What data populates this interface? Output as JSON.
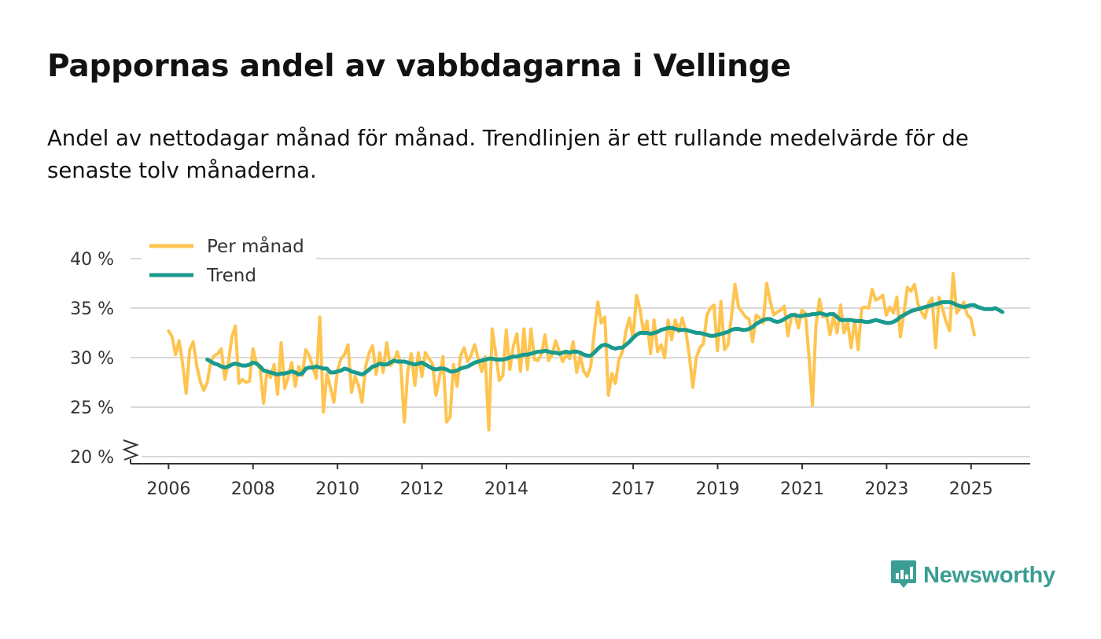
{
  "title": "Pappornas andel av vabbdagarna i Vellinge",
  "subtitle": "Andel av nettodagar månad för månad. Trendlinjen är ett rullande medelvärde för de senaste tolv månaderna.",
  "brand": {
    "name": "Newsworthy",
    "color": "#3a9e94",
    "icon": "newsworthy-logo-icon"
  },
  "colors": {
    "monthly": "#fec44f",
    "trend": "#1a9a8c",
    "grid": "#d9d9d9",
    "axis": "#333333"
  },
  "chart_data": {
    "type": "line",
    "title": "Pappornas andel av vabbdagarna i Vellinge",
    "xlabel": "",
    "ylabel": "",
    "ylim": [
      20,
      40
    ],
    "y_ticks": [
      20,
      25,
      30,
      35,
      40
    ],
    "y_tick_labels": [
      "20 %",
      "25 %",
      "30 %",
      "35 %",
      "40 %"
    ],
    "y_axis_break": true,
    "x_ticks": [
      2006,
      2008,
      2010,
      2012,
      2014,
      2017,
      2019,
      2021,
      2023,
      2025
    ],
    "x_tick_labels": [
      "2006",
      "2008",
      "2010",
      "2012",
      "2014",
      "2017",
      "2019",
      "2021",
      "2023",
      "2025"
    ],
    "xlim": [
      2005.1,
      2026.4
    ],
    "grid": true,
    "legend": {
      "position": "top-left",
      "entries": [
        "Per månad",
        "Trend"
      ]
    },
    "series": [
      {
        "name": "Per månad",
        "color": "#fec44f",
        "x_start": 2006.0,
        "step": 0.0833,
        "values": [
          32.7,
          32.1,
          30.3,
          31.7,
          29.4,
          26.4,
          30.8,
          31.6,
          29.2,
          27.6,
          26.7,
          27.5,
          29.6,
          30.2,
          30.4,
          30.9,
          27.8,
          29.5,
          32.1,
          33.2,
          27.4,
          27.8,
          27.5,
          27.6,
          30.9,
          29.4,
          28.9,
          25.4,
          28.7,
          28.0,
          29.3,
          26.3,
          31.5,
          26.9,
          28.0,
          29.5,
          27.1,
          29.1,
          28.2,
          30.8,
          30.2,
          29.0,
          27.9,
          34.1,
          24.5,
          28.4,
          27.0,
          25.5,
          28.7,
          29.9,
          30.3,
          31.3,
          26.5,
          28.1,
          27.2,
          25.5,
          29.1,
          30.5,
          31.2,
          28.3,
          30.5,
          28.5,
          31.5,
          29.2,
          29.6,
          30.6,
          29.3,
          23.5,
          28.7,
          30.4,
          27.2,
          30.5,
          28.1,
          30.5,
          29.9,
          29.4,
          26.2,
          28.0,
          30.1,
          23.5,
          24.0,
          29.3,
          27.1,
          30.2,
          31.0,
          29.6,
          30.3,
          31.3,
          29.9,
          28.6,
          30.1,
          22.7,
          32.9,
          30.4,
          27.7,
          28.2,
          32.8,
          28.8,
          31.2,
          32.4,
          28.6,
          32.9,
          28.8,
          32.9,
          29.8,
          29.7,
          30.4,
          32.3,
          29.7,
          30.3,
          31.7,
          30.7,
          29.6,
          30.3,
          29.9,
          31.6,
          28.5,
          30.2,
          28.6,
          28.1,
          29.1,
          32.6,
          35.6,
          33.5,
          34.1,
          26.2,
          28.4,
          27.4,
          29.8,
          30.6,
          32.7,
          34.0,
          31.9,
          36.3,
          34.9,
          32.5,
          33.7,
          30.4,
          33.8,
          30.6,
          31.3,
          30.0,
          33.8,
          31.8,
          33.8,
          32.6,
          34.0,
          32.7,
          30.2,
          27.0,
          30.0,
          31.0,
          31.4,
          34.3,
          35.0,
          35.3,
          30.7,
          35.7,
          30.8,
          31.3,
          34.2,
          37.4,
          35.1,
          34.6,
          34.1,
          33.9,
          31.6,
          34.3,
          34.0,
          33.5,
          37.5,
          35.7,
          34.3,
          34.6,
          34.8,
          35.2,
          32.2,
          34.1,
          34.4,
          33.0,
          34.8,
          34.5,
          30.2,
          25.2,
          33.2,
          35.9,
          34.1,
          34.3,
          32.3,
          34.2,
          32.5,
          35.3,
          32.5,
          33.6,
          31.0,
          33.8,
          30.8,
          35.0,
          35.1,
          35.0,
          36.9,
          35.8,
          36.0,
          36.3,
          34.3,
          35.1,
          34.5,
          36.1,
          32.1,
          34.5,
          37.1,
          36.7,
          37.4,
          35.4,
          34.6,
          34.0,
          35.5,
          36.0,
          31.0,
          36.1,
          34.9,
          33.6,
          32.7,
          38.5,
          34.5,
          35.0,
          35.6,
          34.3,
          34.0,
          32.3
        ]
      },
      {
        "name": "Trend",
        "color": "#1a9a8c",
        "x_start": 2006.917,
        "step": 0.0833,
        "values": [
          29.8,
          29.6,
          29.4,
          29.3,
          29.1,
          29.0,
          29.1,
          29.3,
          29.4,
          29.3,
          29.2,
          29.2,
          29.3,
          29.5,
          29.4,
          29.1,
          28.7,
          28.6,
          28.5,
          28.4,
          28.3,
          28.4,
          28.4,
          28.5,
          28.6,
          28.5,
          28.3,
          28.4,
          28.9,
          29.0,
          29.0,
          29.1,
          29.0,
          28.9,
          28.9,
          28.5,
          28.5,
          28.6,
          28.7,
          28.9,
          28.8,
          28.6,
          28.5,
          28.4,
          28.3,
          28.5,
          28.8,
          29.1,
          29.2,
          29.4,
          29.3,
          29.3,
          29.5,
          29.7,
          29.6,
          29.6,
          29.6,
          29.5,
          29.4,
          29.3,
          29.4,
          29.5,
          29.3,
          29.1,
          28.9,
          28.8,
          28.9,
          28.9,
          28.8,
          28.6,
          28.6,
          28.7,
          28.9,
          29.0,
          29.1,
          29.3,
          29.5,
          29.6,
          29.7,
          29.8,
          29.9,
          29.9,
          29.8,
          29.8,
          29.8,
          29.9,
          30.0,
          30.1,
          30.1,
          30.2,
          30.3,
          30.3,
          30.4,
          30.5,
          30.6,
          30.6,
          30.7,
          30.6,
          30.5,
          30.5,
          30.4,
          30.5,
          30.6,
          30.5,
          30.6,
          30.6,
          30.5,
          30.3,
          30.2,
          30.2,
          30.5,
          30.9,
          31.2,
          31.3,
          31.2,
          31.0,
          30.9,
          31.0,
          31.0,
          31.3,
          31.6,
          32.0,
          32.3,
          32.5,
          32.5,
          32.5,
          32.4,
          32.5,
          32.6,
          32.8,
          32.9,
          33.0,
          33.0,
          32.9,
          32.8,
          32.8,
          32.8,
          32.7,
          32.6,
          32.5,
          32.5,
          32.4,
          32.3,
          32.2,
          32.2,
          32.3,
          32.4,
          32.5,
          32.6,
          32.8,
          32.9,
          32.9,
          32.8,
          32.8,
          32.9,
          33.1,
          33.4,
          33.6,
          33.8,
          33.9,
          33.9,
          33.7,
          33.6,
          33.7,
          33.9,
          34.1,
          34.3,
          34.3,
          34.2,
          34.2,
          34.3,
          34.3,
          34.4,
          34.4,
          34.5,
          34.4,
          34.3,
          34.4,
          34.4,
          34.1,
          33.8,
          33.8,
          33.8,
          33.8,
          33.7,
          33.7,
          33.7,
          33.6,
          33.6,
          33.7,
          33.8,
          33.7,
          33.6,
          33.5,
          33.5,
          33.6,
          33.8,
          34.1,
          34.3,
          34.5,
          34.7,
          34.8,
          34.9,
          35.0,
          35.1,
          35.2,
          35.3,
          35.4,
          35.5,
          35.6,
          35.6,
          35.6,
          35.5,
          35.3,
          35.2,
          35.1,
          35.2,
          35.3,
          35.3,
          35.1,
          35.0,
          34.9,
          34.9,
          34.9,
          35.0,
          34.8,
          34.6
        ]
      }
    ]
  }
}
